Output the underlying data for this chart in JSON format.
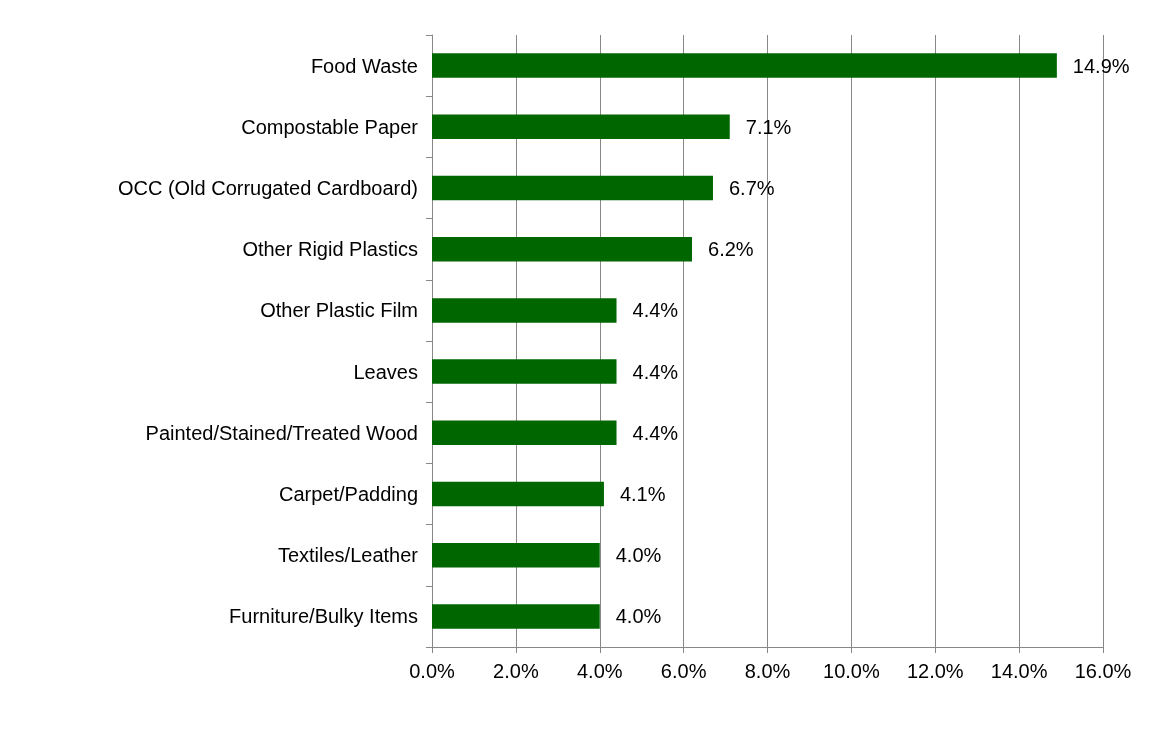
{
  "chart_data": {
    "type": "bar",
    "orientation": "horizontal",
    "categories": [
      "Food Waste",
      "Compostable Paper",
      "OCC (Old Corrugated Cardboard)",
      "Other Rigid Plastics",
      "Other Plastic Film",
      "Leaves",
      "Painted/Stained/Treated Wood",
      "Carpet/Padding",
      "Textiles/Leather",
      "Furniture/Bulky Items"
    ],
    "values": [
      14.9,
      7.1,
      6.7,
      6.2,
      4.4,
      4.4,
      4.4,
      4.1,
      4.0,
      4.0
    ],
    "value_labels": [
      "14.9%",
      "7.1%",
      "6.7%",
      "6.2%",
      "4.4%",
      "4.4%",
      "4.4%",
      "4.1%",
      "4.0%",
      "4.0%"
    ],
    "color": "#006600",
    "xlim": [
      0,
      16
    ],
    "xticks": [
      {
        "value": 0,
        "label": "0.0%"
      },
      {
        "value": 2,
        "label": "2.0%"
      },
      {
        "value": 4,
        "label": "4.0%"
      },
      {
        "value": 6,
        "label": "6.0%"
      },
      {
        "value": 8,
        "label": "8.0%"
      },
      {
        "value": 10,
        "label": "10.0%"
      },
      {
        "value": 12,
        "label": "12.0%"
      },
      {
        "value": 14,
        "label": "14.0%"
      },
      {
        "value": 16,
        "label": "16.0%"
      }
    ],
    "grid": "x"
  }
}
